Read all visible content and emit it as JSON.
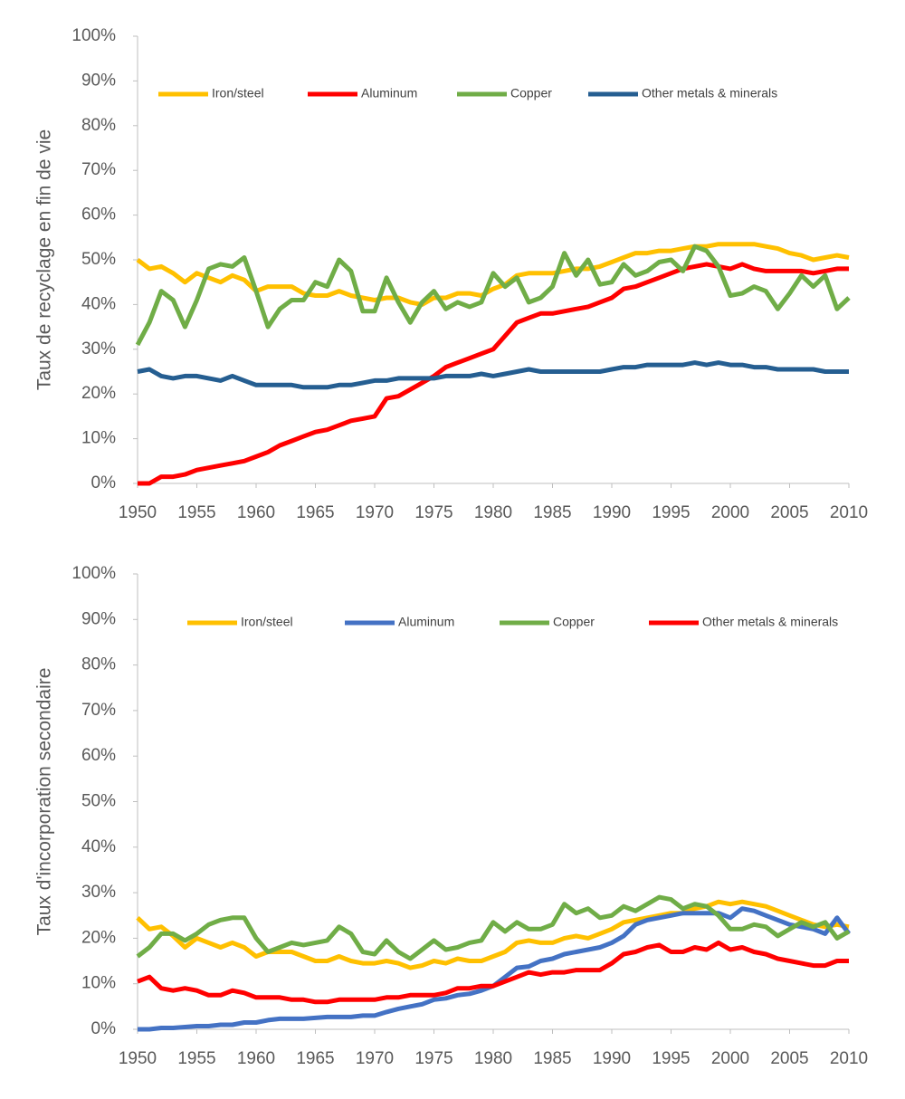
{
  "chart_data": [
    {
      "type": "line",
      "y_label": "Taux de recyclage en fin de vie",
      "x": [
        1950,
        1951,
        1952,
        1953,
        1954,
        1955,
        1956,
        1957,
        1958,
        1959,
        1960,
        1961,
        1962,
        1963,
        1964,
        1965,
        1966,
        1967,
        1968,
        1969,
        1970,
        1971,
        1972,
        1973,
        1974,
        1975,
        1976,
        1977,
        1978,
        1979,
        1980,
        1981,
        1982,
        1983,
        1984,
        1985,
        1986,
        1987,
        1988,
        1989,
        1990,
        1991,
        1992,
        1993,
        1994,
        1995,
        1996,
        1997,
        1998,
        1999,
        2000,
        2001,
        2002,
        2003,
        2004,
        2005,
        2006,
        2007,
        2008,
        2009,
        2010
      ],
      "xlim": [
        1950,
        2010
      ],
      "xticks": [
        1950,
        1955,
        1960,
        1965,
        1970,
        1975,
        1980,
        1985,
        1990,
        1995,
        2000,
        2005,
        2010
      ],
      "ylim": [
        0,
        100
      ],
      "yticks": [
        {
          "value": 0,
          "label": "0%"
        },
        {
          "value": 10,
          "label": "10%"
        },
        {
          "value": 20,
          "label": "20%"
        },
        {
          "value": 30,
          "label": "30%"
        },
        {
          "value": 40,
          "label": "40%"
        },
        {
          "value": 50,
          "label": "50%"
        },
        {
          "value": 60,
          "label": "60%"
        },
        {
          "value": 70,
          "label": "70%"
        },
        {
          "value": 80,
          "label": "80%"
        },
        {
          "value": 90,
          "label": "90%"
        },
        {
          "value": 100,
          "label": "100%"
        }
      ],
      "series": [
        {
          "name": "Iron/steel",
          "color": "#FFC000",
          "values": [
            50,
            48,
            48.5,
            47,
            45,
            47,
            46,
            45,
            46.5,
            45.5,
            43,
            44,
            44,
            44,
            42.5,
            42,
            42,
            43,
            42,
            41.5,
            41,
            41.5,
            41.5,
            40.5,
            40,
            41.5,
            41.5,
            42.5,
            42.5,
            42,
            43.5,
            44.5,
            46.5,
            47,
            47,
            47,
            47.5,
            48,
            48,
            48.5,
            49.5,
            50.5,
            51.5,
            51.5,
            52,
            52,
            52.5,
            53,
            53,
            53.5,
            53.5,
            53.5,
            53.5,
            53,
            52.5,
            51.5,
            51,
            50,
            50.5,
            51,
            50.5
          ]
        },
        {
          "name": "Aluminum",
          "color": "#FF0000",
          "values": [
            0,
            0,
            1.5,
            1.5,
            2,
            3,
            3.5,
            4,
            4.5,
            5,
            6,
            7,
            8.5,
            9.5,
            10.5,
            11.5,
            12,
            13,
            14,
            14.5,
            15,
            19,
            19.5,
            21,
            22.5,
            24,
            26,
            27,
            28,
            29,
            30,
            33,
            36,
            37,
            38,
            38,
            38.5,
            39,
            39.5,
            40.5,
            41.5,
            43.5,
            44,
            45,
            46,
            47,
            48,
            48.5,
            49,
            48.5,
            48,
            49,
            48,
            47.5,
            47.5,
            47.5,
            47.5,
            47,
            47.5,
            48,
            48
          ]
        },
        {
          "name": "Copper",
          "color": "#70AD47",
          "values": [
            31,
            36,
            43,
            41,
            35,
            41,
            48,
            49,
            48.5,
            50.5,
            43,
            35,
            39,
            41,
            41,
            45,
            44,
            50,
            47.5,
            38.5,
            38.5,
            46,
            40.5,
            36,
            40.5,
            43,
            39,
            40.5,
            39.5,
            40.5,
            47,
            44,
            46,
            40.5,
            41.5,
            44,
            51.5,
            46.5,
            50,
            44.5,
            45,
            49,
            46.5,
            47.5,
            49.5,
            50,
            47.5,
            53,
            52,
            48.5,
            42,
            42.5,
            44,
            43,
            39,
            42.5,
            46.5,
            44,
            46.5,
            39,
            41.5
          ]
        },
        {
          "name": "Other metals & minerals",
          "color": "#255E91",
          "values": [
            25,
            25.5,
            24,
            23.5,
            24,
            24,
            23.5,
            23,
            24,
            23,
            22,
            22,
            22,
            22,
            21.5,
            21.5,
            21.5,
            22,
            22,
            22.5,
            23,
            23,
            23.5,
            23.5,
            23.5,
            23.5,
            24,
            24,
            24,
            24.5,
            24,
            24.5,
            25,
            25.5,
            25,
            25,
            25,
            25,
            25,
            25,
            25.5,
            26,
            26,
            26.5,
            26.5,
            26.5,
            26.5,
            27,
            26.5,
            27,
            26.5,
            26.5,
            26,
            26,
            25.5,
            25.5,
            25.5,
            25.5,
            25,
            25,
            25
          ]
        }
      ]
    },
    {
      "type": "line",
      "y_label": "Taux d'incorporation secondaire",
      "x": [
        1950,
        1951,
        1952,
        1953,
        1954,
        1955,
        1956,
        1957,
        1958,
        1959,
        1960,
        1961,
        1962,
        1963,
        1964,
        1965,
        1966,
        1967,
        1968,
        1969,
        1970,
        1971,
        1972,
        1973,
        1974,
        1975,
        1976,
        1977,
        1978,
        1979,
        1980,
        1981,
        1982,
        1983,
        1984,
        1985,
        1986,
        1987,
        1988,
        1989,
        1990,
        1991,
        1992,
        1993,
        1994,
        1995,
        1996,
        1997,
        1998,
        1999,
        2000,
        2001,
        2002,
        2003,
        2004,
        2005,
        2006,
        2007,
        2008,
        2009,
        2010
      ],
      "xlim": [
        1950,
        2010
      ],
      "xticks": [
        1950,
        1955,
        1960,
        1965,
        1970,
        1975,
        1980,
        1985,
        1990,
        1995,
        2000,
        2005,
        2010
      ],
      "ylim": [
        0,
        100
      ],
      "yticks": [
        {
          "value": 0,
          "label": "0%"
        },
        {
          "value": 10,
          "label": "10%"
        },
        {
          "value": 20,
          "label": "20%"
        },
        {
          "value": 30,
          "label": "30%"
        },
        {
          "value": 40,
          "label": "40%"
        },
        {
          "value": 50,
          "label": "50%"
        },
        {
          "value": 60,
          "label": "60%"
        },
        {
          "value": 70,
          "label": "70%"
        },
        {
          "value": 80,
          "label": "80%"
        },
        {
          "value": 90,
          "label": "90%"
        },
        {
          "value": 100,
          "label": "100%"
        }
      ],
      "series": [
        {
          "name": "Iron/steel",
          "color": "#FFC000",
          "values": [
            24.5,
            22,
            22.5,
            20.5,
            18,
            20,
            19,
            18,
            19,
            18,
            16,
            17,
            17,
            17,
            16,
            15,
            15,
            16,
            15,
            14.5,
            14.5,
            15,
            14.5,
            13.5,
            14,
            15,
            14.5,
            15.5,
            15,
            15,
            16,
            17,
            19,
            19.5,
            19,
            19,
            20,
            20.5,
            20,
            21,
            22,
            23.5,
            24,
            24.5,
            25,
            25.5,
            25.5,
            26.5,
            27,
            28,
            27.5,
            28,
            27.5,
            27,
            26,
            25,
            24,
            23,
            22.5,
            23,
            22.5
          ]
        },
        {
          "name": "Aluminum",
          "color": "#4472C4",
          "values": [
            0,
            0,
            0.3,
            0.3,
            0.5,
            0.7,
            0.7,
            1,
            1,
            1.5,
            1.5,
            2,
            2.3,
            2.3,
            2.3,
            2.5,
            2.7,
            2.7,
            2.7,
            3,
            3,
            3.8,
            4.5,
            5,
            5.5,
            6.5,
            6.8,
            7.5,
            7.8,
            8.5,
            9.5,
            11.5,
            13.5,
            13.8,
            15,
            15.5,
            16.5,
            17,
            17.5,
            18,
            19,
            20.5,
            23,
            24,
            24.5,
            25,
            25.5,
            25.5,
            25.5,
            25.5,
            24.5,
            26.5,
            26,
            25,
            24,
            23,
            22.5,
            22,
            21,
            24.5,
            21
          ]
        },
        {
          "name": "Copper",
          "color": "#70AD47",
          "values": [
            16,
            18,
            21,
            21,
            19.5,
            21,
            23,
            24,
            24.5,
            24.5,
            20,
            17,
            18,
            19,
            18.5,
            19,
            19.5,
            22.5,
            21,
            17,
            16.5,
            19.5,
            17,
            15.5,
            17.5,
            19.5,
            17.5,
            18,
            19,
            19.5,
            23.5,
            21.5,
            23.5,
            22,
            22,
            23,
            27.5,
            25.5,
            26.5,
            24.5,
            25,
            27,
            26,
            27.5,
            29,
            28.5,
            26.5,
            27.5,
            27,
            25,
            22,
            22,
            23,
            22.5,
            20.5,
            22,
            23.5,
            22.5,
            23.5,
            20,
            21.5
          ]
        },
        {
          "name": "Other metals & minerals",
          "color": "#FF0000",
          "values": [
            10.5,
            11.5,
            9,
            8.5,
            9,
            8.5,
            7.5,
            7.5,
            8.5,
            8,
            7,
            7,
            7,
            6.5,
            6.5,
            6,
            6,
            6.5,
            6.5,
            6.5,
            6.5,
            7,
            7,
            7.5,
            7.5,
            7.5,
            8,
            9,
            9,
            9.5,
            9.5,
            10.5,
            11.5,
            12.5,
            12,
            12.5,
            12.5,
            13,
            13,
            13,
            14.5,
            16.5,
            17,
            18,
            18.5,
            17,
            17,
            18,
            17.5,
            19,
            17.5,
            18,
            17,
            16.5,
            15.5,
            15,
            14.5,
            14,
            14,
            15,
            15
          ]
        }
      ]
    }
  ]
}
